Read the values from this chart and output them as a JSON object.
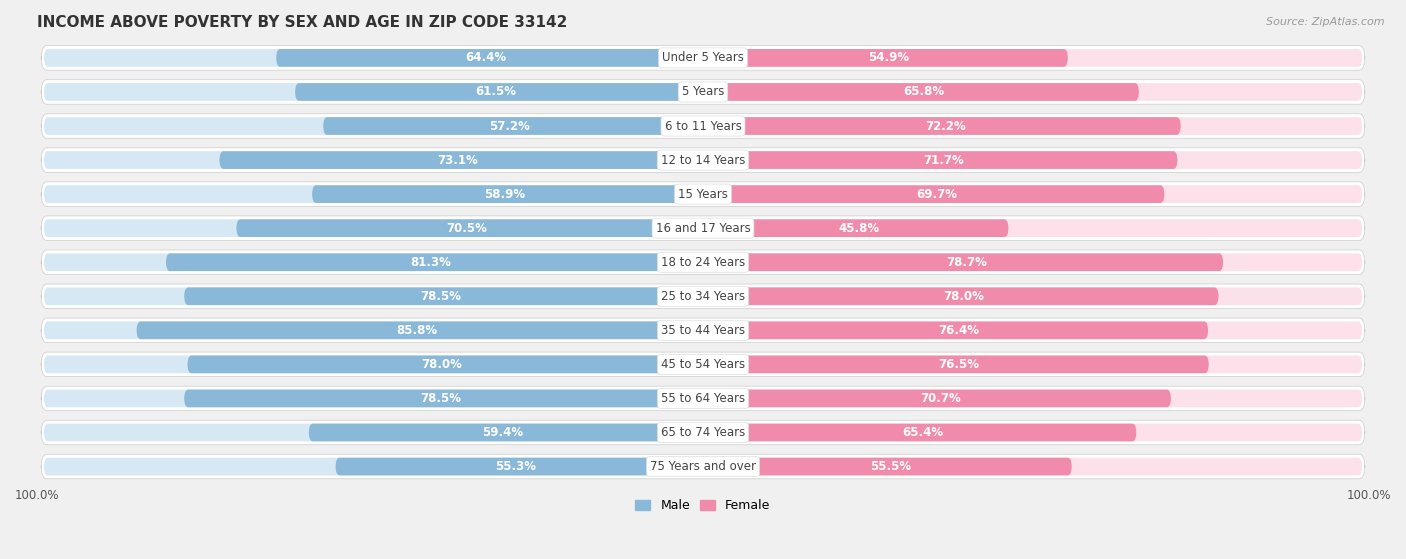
{
  "title": "INCOME ABOVE POVERTY BY SEX AND AGE IN ZIP CODE 33142",
  "source": "Source: ZipAtlas.com",
  "categories": [
    "Under 5 Years",
    "5 Years",
    "6 to 11 Years",
    "12 to 14 Years",
    "15 Years",
    "16 and 17 Years",
    "18 to 24 Years",
    "25 to 34 Years",
    "35 to 44 Years",
    "45 to 54 Years",
    "55 to 64 Years",
    "65 to 74 Years",
    "75 Years and over"
  ],
  "male_values": [
    64.4,
    61.5,
    57.2,
    73.1,
    58.9,
    70.5,
    81.3,
    78.5,
    85.8,
    78.0,
    78.5,
    59.4,
    55.3
  ],
  "female_values": [
    54.9,
    65.8,
    72.2,
    71.7,
    69.7,
    45.8,
    78.7,
    78.0,
    76.4,
    76.5,
    70.7,
    65.4,
    55.5
  ],
  "male_color": "#89b8d9",
  "female_color": "#f08bab",
  "male_track_color": "#d6e8f4",
  "female_track_color": "#fce0ea",
  "row_bg_color": "#e8e8e8",
  "background_color": "#f0f0f0",
  "center_label_bg": "#ffffff",
  "title_fontsize": 11,
  "label_fontsize": 8.5,
  "category_fontsize": 8.5,
  "legend_fontsize": 9,
  "axis_label_fontsize": 8.5,
  "inside_label_color": "#ffffff",
  "outside_label_color": "#666666"
}
